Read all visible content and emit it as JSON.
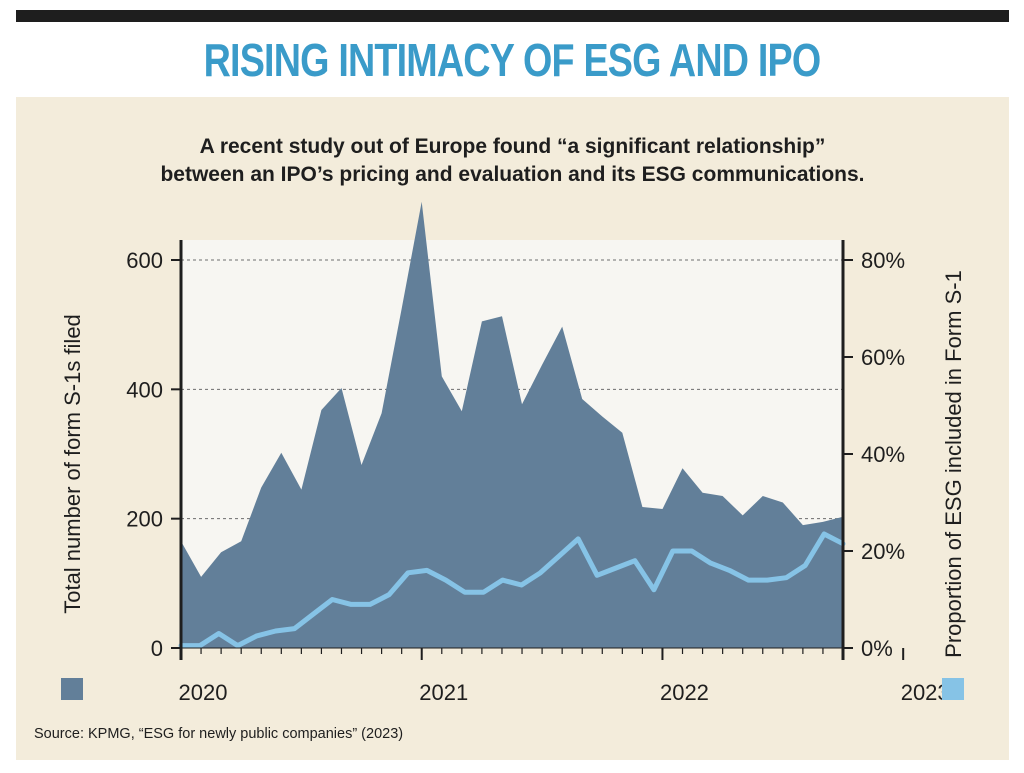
{
  "title": "RISING INTIMACY OF ESG AND IPO",
  "subtitle_lines": [
    "A recent study out of Europe found “a significant relationship”",
    "between an IPO’s pricing and evaluation and its ESG communications."
  ],
  "source": "Source: KPMG, “ESG for newly public companies” (2023)",
  "colors": {
    "title": "#3a9bc9",
    "area": "#627f99",
    "line": "#86c3e6",
    "panel": "#f3ecdb",
    "plot_bg": "#f7f6f2"
  },
  "chart_data": {
    "type": "area",
    "ylabel_left": "Total number of form S-1s filed",
    "ylabel_right": "Proportion of ESG included in Form S-1",
    "x_tick_labels": [
      "2020",
      "2021",
      "2022",
      "2023"
    ],
    "left_ticks": [
      "0",
      "200",
      "400",
      "600"
    ],
    "right_ticks": [
      "0%",
      "20%",
      "40%",
      "60%",
      "80%"
    ],
    "ylim_left": [
      0,
      600
    ],
    "ylim_right": [
      0,
      80
    ],
    "grid": "dashed horizontal at 200, 400, 600",
    "x_start": "2020-01",
    "series": [
      {
        "name": "Total number of form S-1s filed",
        "kind": "area",
        "axis": "left",
        "values": [
          165,
          110,
          148,
          165,
          248,
          302,
          245,
          368,
          402,
          283,
          363,
          525,
          690,
          420,
          366,
          505,
          513,
          377,
          438,
          497,
          385,
          358,
          333,
          218,
          215,
          278,
          240,
          235,
          205,
          235,
          225,
          190,
          195,
          203
        ]
      },
      {
        "name": "Proportion of ESG included in Form S-1",
        "kind": "line",
        "axis": "right",
        "values": [
          0.5,
          0.5,
          3,
          0.5,
          2.5,
          3.5,
          4,
          7,
          10,
          9,
          9,
          11,
          15.5,
          16,
          14,
          11.5,
          11.5,
          14,
          13,
          15.5,
          19,
          22.5,
          15,
          16.5,
          18,
          12,
          20,
          20,
          17.5,
          16,
          14,
          14,
          14.5,
          17,
          23.5,
          21.5
        ]
      }
    ],
    "legend": "left and right bottom squares"
  }
}
